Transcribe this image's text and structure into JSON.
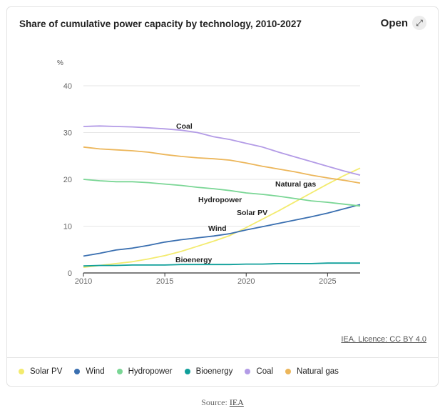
{
  "header": {
    "title": "Share of cumulative power capacity by technology, 2010-2027",
    "open_label": "Open",
    "open_icon": "expand-arrows-icon"
  },
  "licence": "IEA. Licence: CC BY 4.0",
  "source": {
    "prefix": "Source: ",
    "link": "IEA"
  },
  "colors": {
    "solar_pv": "#f3eb6e",
    "wind": "#3a6fb0",
    "hydropower": "#7ad695",
    "bioenergy": "#0f9f9a",
    "coal": "#b39be6",
    "natural_gas": "#ecb65a"
  },
  "chart_data": {
    "type": "line",
    "title": "Share of cumulative power capacity by technology, 2010-2027",
    "ylabel": "%",
    "xlabel": "",
    "xlim": [
      2010,
      2027
    ],
    "ylim": [
      0,
      40
    ],
    "xticks": [
      2010,
      2015,
      2020,
      2025
    ],
    "yticks": [
      0,
      10,
      20,
      30,
      40
    ],
    "grid": true,
    "legend_position": "bottom",
    "x": [
      2010,
      2011,
      2012,
      2013,
      2014,
      2015,
      2016,
      2017,
      2018,
      2019,
      2020,
      2021,
      2022,
      2023,
      2024,
      2025,
      2026,
      2027
    ],
    "series": [
      {
        "key": "solar_pv",
        "name": "Solar PV",
        "values": [
          1.2,
          1.6,
          2.0,
          2.4,
          3.0,
          3.7,
          4.6,
          5.7,
          6.8,
          8.0,
          9.7,
          11.5,
          13.3,
          15.2,
          17.1,
          19.0,
          20.8,
          22.4
        ]
      },
      {
        "key": "wind",
        "name": "Wind",
        "values": [
          3.6,
          4.2,
          4.9,
          5.3,
          5.9,
          6.6,
          7.1,
          7.5,
          7.9,
          8.4,
          9.2,
          9.9,
          10.6,
          11.3,
          12.0,
          12.8,
          13.7,
          14.6
        ]
      },
      {
        "key": "hydropower",
        "name": "Hydropower",
        "values": [
          20.0,
          19.7,
          19.5,
          19.5,
          19.3,
          19.0,
          18.7,
          18.3,
          18.0,
          17.6,
          17.1,
          16.8,
          16.4,
          15.9,
          15.4,
          15.1,
          14.7,
          14.3
        ]
      },
      {
        "key": "bioenergy",
        "name": "Bioenergy",
        "values": [
          1.5,
          1.6,
          1.6,
          1.7,
          1.7,
          1.7,
          1.8,
          1.8,
          1.8,
          1.8,
          1.9,
          1.9,
          2.0,
          2.0,
          2.0,
          2.1,
          2.1,
          2.1
        ]
      },
      {
        "key": "coal",
        "name": "Coal",
        "values": [
          31.3,
          31.4,
          31.3,
          31.2,
          31.0,
          30.8,
          30.5,
          30.0,
          29.1,
          28.5,
          27.7,
          26.9,
          25.8,
          24.8,
          23.8,
          22.8,
          21.8,
          20.9
        ]
      },
      {
        "key": "natural_gas",
        "name": "Natural gas",
        "values": [
          26.9,
          26.5,
          26.3,
          26.1,
          25.8,
          25.3,
          24.9,
          24.6,
          24.4,
          24.1,
          23.5,
          22.8,
          22.2,
          21.6,
          20.9,
          20.3,
          19.8,
          19.2
        ]
      }
    ],
    "annotations": [
      {
        "series": "coal",
        "text": "Coal"
      },
      {
        "series": "natural_gas",
        "text": "Natural gas"
      },
      {
        "series": "hydropower",
        "text": "Hydropower"
      },
      {
        "series": "solar_pv",
        "text": "Solar PV"
      },
      {
        "series": "wind",
        "text": "Wind"
      },
      {
        "series": "bioenergy",
        "text": "Bioenergy"
      }
    ]
  }
}
